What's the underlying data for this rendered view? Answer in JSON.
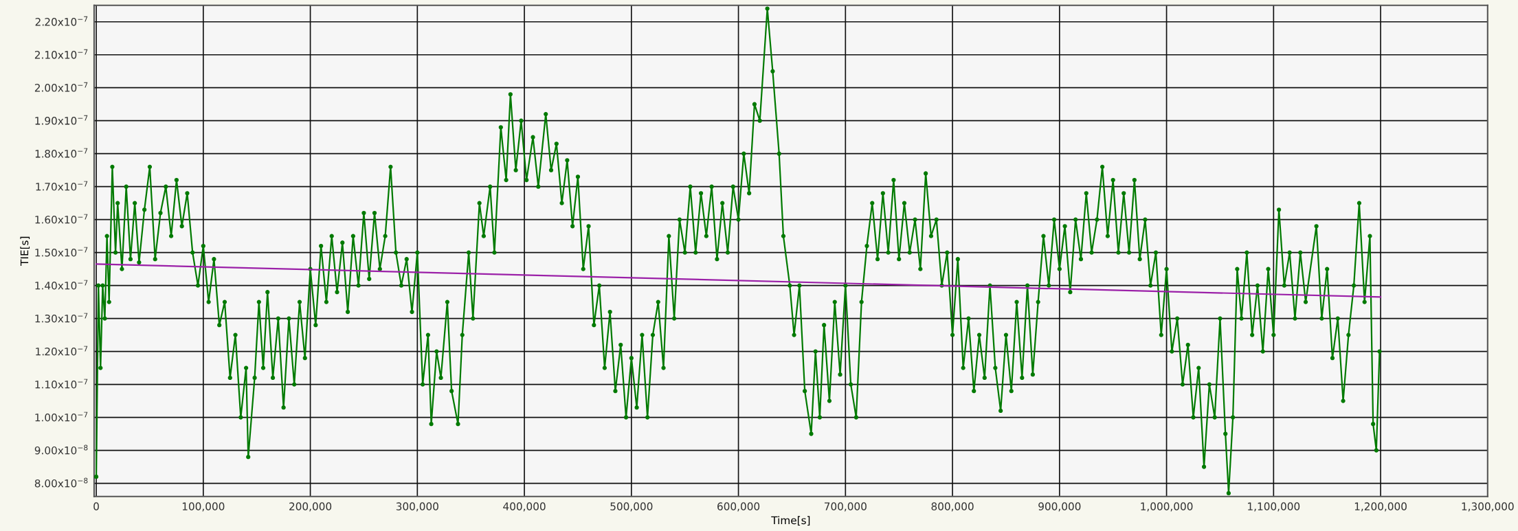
{
  "chart_data": {
    "type": "line",
    "xlabel": "Time[s]",
    "ylabel": "TIE[s]",
    "grid": true,
    "xlim": [
      -2000,
      1300000
    ],
    "ylim": [
      7.6e-08,
      2.25e-07
    ],
    "xticks": [
      {
        "value": 0,
        "label": "0"
      },
      {
        "value": 100000,
        "label": "100,000"
      },
      {
        "value": 200000,
        "label": "200,000"
      },
      {
        "value": 300000,
        "label": "300,000"
      },
      {
        "value": 400000,
        "label": "400,000"
      },
      {
        "value": 500000,
        "label": "500,000"
      },
      {
        "value": 600000,
        "label": "600,000"
      },
      {
        "value": 700000,
        "label": "700,000"
      },
      {
        "value": 800000,
        "label": "800,000"
      },
      {
        "value": 900000,
        "label": "900,000"
      },
      {
        "value": 1000000,
        "label": "1,000,000"
      },
      {
        "value": 1100000,
        "label": "1,100,000"
      },
      {
        "value": 1200000,
        "label": "1,200,000"
      },
      {
        "value": 1300000,
        "label": "1,300,000"
      }
    ],
    "yticks": [
      {
        "value": 8e-08,
        "label": "8.00x10$^{−8}$"
      },
      {
        "value": 9e-08,
        "label": "9.00x10$^{−8}$"
      },
      {
        "value": 1e-07,
        "label": "1.00x10$^{−7}$"
      },
      {
        "value": 1.1e-07,
        "label": "1.10x10$^{−7}$"
      },
      {
        "value": 1.2e-07,
        "label": "1.20x10$^{−7}$"
      },
      {
        "value": 1.3e-07,
        "label": "1.30x10$^{−7}$"
      },
      {
        "value": 1.4e-07,
        "label": "1.40x10$^{−7}$"
      },
      {
        "value": 1.5e-07,
        "label": "1.50x10$^{−7}$"
      },
      {
        "value": 1.6e-07,
        "label": "1.60x10$^{−7}$"
      },
      {
        "value": 1.7e-07,
        "label": "1.70x10$^{−7}$"
      },
      {
        "value": 1.8e-07,
        "label": "1.80x10$^{−7}$"
      },
      {
        "value": 1.9e-07,
        "label": "1.90x10$^{−7}$"
      },
      {
        "value": 2e-07,
        "label": "2.00x10$^{−7}$"
      },
      {
        "value": 2.1e-07,
        "label": "2.10x10$^{−7}$"
      },
      {
        "value": 2.2e-07,
        "label": "2.20x10$^{−7}$"
      }
    ],
    "series": [
      {
        "color": "#007a00",
        "marker": "circle",
        "x": [
          0,
          2000,
          4000,
          6000,
          8000,
          10000,
          12000,
          15000,
          18000,
          20000,
          24000,
          28000,
          32000,
          36000,
          40000,
          45000,
          50000,
          55000,
          60000,
          65000,
          70000,
          75000,
          80000,
          85000,
          90000,
          95000,
          100000,
          105000,
          110000,
          115000,
          120000,
          125000,
          130000,
          135000,
          140000,
          142000,
          148000,
          152000,
          156000,
          160000,
          165000,
          170000,
          175000,
          180000,
          185000,
          190000,
          195000,
          200000,
          205000,
          210000,
          215000,
          220000,
          225000,
          230000,
          235000,
          240000,
          245000,
          250000,
          255000,
          260000,
          265000,
          270000,
          275000,
          280000,
          285000,
          290000,
          295000,
          300000,
          305000,
          310000,
          313000,
          318000,
          322000,
          328000,
          332000,
          338000,
          342000,
          348000,
          352000,
          358000,
          362000,
          368000,
          372000,
          378000,
          383000,
          387000,
          392000,
          397000,
          402000,
          408000,
          413000,
          420000,
          425000,
          430000,
          435000,
          440000,
          445000,
          450000,
          455000,
          460000,
          465000,
          470000,
          475000,
          480000,
          485000,
          490000,
          495000,
          500000,
          505000,
          510000,
          515000,
          520000,
          525000,
          530000,
          535000,
          540000,
          545000,
          550000,
          555000,
          560000,
          565000,
          570000,
          575000,
          580000,
          585000,
          590000,
          595000,
          600000,
          605000,
          610000,
          615000,
          620000,
          627000,
          632000,
          638000,
          642000,
          648000,
          652000,
          657000,
          662000,
          668000,
          672000,
          676000,
          680000,
          685000,
          690000,
          695000,
          700000,
          705000,
          710000,
          715000,
          720000,
          725000,
          730000,
          735000,
          740000,
          745000,
          750000,
          755000,
          760000,
          765000,
          770000,
          775000,
          780000,
          785000,
          790000,
          795000,
          800000,
          805000,
          810000,
          815000,
          820000,
          825000,
          830000,
          835000,
          840000,
          845000,
          850000,
          855000,
          860000,
          865000,
          870000,
          875000,
          880000,
          885000,
          890000,
          895000,
          900000,
          905000,
          910000,
          915000,
          920000,
          925000,
          930000,
          935000,
          940000,
          945000,
          950000,
          955000,
          960000,
          965000,
          970000,
          975000,
          980000,
          985000,
          990000,
          995000,
          1000000,
          1005000,
          1010000,
          1015000,
          1020000,
          1025000,
          1030000,
          1035000,
          1040000,
          1045000,
          1050000,
          1055000,
          1058000,
          1062000,
          1066000,
          1070000,
          1075000,
          1080000,
          1085000,
          1090000,
          1095000,
          1100000,
          1105000,
          1110000,
          1115000,
          1120000,
          1125000,
          1130000,
          1140000,
          1145000,
          1150000,
          1155000,
          1160000,
          1165000,
          1170000,
          1175000,
          1180000,
          1185000,
          1190000,
          1193000,
          1196000,
          1199000
        ],
        "values": [
          8.2e-08,
          1.4e-07,
          1.15e-07,
          1.4e-07,
          1.3e-07,
          1.55e-07,
          1.35e-07,
          1.76e-07,
          1.5e-07,
          1.65e-07,
          1.45e-07,
          1.7e-07,
          1.48e-07,
          1.65e-07,
          1.47e-07,
          1.63e-07,
          1.76e-07,
          1.48e-07,
          1.62e-07,
          1.7e-07,
          1.55e-07,
          1.72e-07,
          1.58e-07,
          1.68e-07,
          1.5e-07,
          1.4e-07,
          1.52e-07,
          1.35e-07,
          1.48e-07,
          1.28e-07,
          1.35e-07,
          1.12e-07,
          1.25e-07,
          1e-07,
          1.15e-07,
          8.8e-08,
          1.12e-07,
          1.35e-07,
          1.15e-07,
          1.38e-07,
          1.12e-07,
          1.3e-07,
          1.03e-07,
          1.3e-07,
          1.1e-07,
          1.35e-07,
          1.18e-07,
          1.45e-07,
          1.28e-07,
          1.52e-07,
          1.35e-07,
          1.55e-07,
          1.38e-07,
          1.53e-07,
          1.32e-07,
          1.55e-07,
          1.4e-07,
          1.62e-07,
          1.42e-07,
          1.62e-07,
          1.45e-07,
          1.55e-07,
          1.76e-07,
          1.5e-07,
          1.4e-07,
          1.48e-07,
          1.32e-07,
          1.5e-07,
          1.1e-07,
          1.25e-07,
          9.8e-08,
          1.2e-07,
          1.12e-07,
          1.35e-07,
          1.08e-07,
          9.8e-08,
          1.25e-07,
          1.5e-07,
          1.3e-07,
          1.65e-07,
          1.55e-07,
          1.7e-07,
          1.5e-07,
          1.88e-07,
          1.72e-07,
          1.98e-07,
          1.75e-07,
          1.9e-07,
          1.72e-07,
          1.85e-07,
          1.7e-07,
          1.92e-07,
          1.75e-07,
          1.83e-07,
          1.65e-07,
          1.78e-07,
          1.58e-07,
          1.73e-07,
          1.45e-07,
          1.58e-07,
          1.28e-07,
          1.4e-07,
          1.15e-07,
          1.32e-07,
          1.08e-07,
          1.22e-07,
          1e-07,
          1.18e-07,
          1.03e-07,
          1.25e-07,
          1e-07,
          1.25e-07,
          1.35e-07,
          1.15e-07,
          1.55e-07,
          1.3e-07,
          1.6e-07,
          1.5e-07,
          1.7e-07,
          1.5e-07,
          1.68e-07,
          1.55e-07,
          1.7e-07,
          1.48e-07,
          1.65e-07,
          1.5e-07,
          1.7e-07,
          1.6e-07,
          1.8e-07,
          1.68e-07,
          1.95e-07,
          1.9e-07,
          2.24e-07,
          2.05e-07,
          1.8e-07,
          1.55e-07,
          1.4e-07,
          1.25e-07,
          1.4e-07,
          1.08e-07,
          9.5e-08,
          1.2e-07,
          1e-07,
          1.28e-07,
          1.05e-07,
          1.35e-07,
          1.13e-07,
          1.4e-07,
          1.1e-07,
          1e-07,
          1.35e-07,
          1.52e-07,
          1.65e-07,
          1.48e-07,
          1.68e-07,
          1.5e-07,
          1.72e-07,
          1.48e-07,
          1.65e-07,
          1.5e-07,
          1.6e-07,
          1.45e-07,
          1.74e-07,
          1.55e-07,
          1.6e-07,
          1.4e-07,
          1.5e-07,
          1.25e-07,
          1.48e-07,
          1.15e-07,
          1.3e-07,
          1.08e-07,
          1.25e-07,
          1.12e-07,
          1.4e-07,
          1.15e-07,
          1.02e-07,
          1.25e-07,
          1.08e-07,
          1.35e-07,
          1.12e-07,
          1.4e-07,
          1.13e-07,
          1.35e-07,
          1.55e-07,
          1.4e-07,
          1.6e-07,
          1.45e-07,
          1.58e-07,
          1.38e-07,
          1.6e-07,
          1.48e-07,
          1.68e-07,
          1.5e-07,
          1.6e-07,
          1.76e-07,
          1.55e-07,
          1.72e-07,
          1.5e-07,
          1.68e-07,
          1.5e-07,
          1.72e-07,
          1.48e-07,
          1.6e-07,
          1.4e-07,
          1.5e-07,
          1.25e-07,
          1.45e-07,
          1.2e-07,
          1.3e-07,
          1.1e-07,
          1.22e-07,
          1e-07,
          1.15e-07,
          8.5e-08,
          1.1e-07,
          1e-07,
          1.3e-07,
          9.5e-08,
          7.7e-08,
          1e-07,
          1.45e-07,
          1.3e-07,
          1.5e-07,
          1.25e-07,
          1.4e-07,
          1.2e-07,
          1.45e-07,
          1.25e-07,
          1.63e-07,
          1.4e-07,
          1.5e-07,
          1.3e-07,
          1.5e-07,
          1.35e-07,
          1.58e-07,
          1.3e-07,
          1.45e-07,
          1.18e-07,
          1.3e-07,
          1.05e-07,
          1.25e-07,
          1.4e-07,
          1.65e-07,
          1.35e-07,
          1.55e-07,
          9.8e-08,
          9e-08,
          1.2e-07
        ]
      },
      {
        "color": "#9b20a8",
        "marker": "none",
        "x": [
          0,
          1200000
        ],
        "values": [
          1.465e-07,
          1.365e-07
        ]
      }
    ]
  }
}
